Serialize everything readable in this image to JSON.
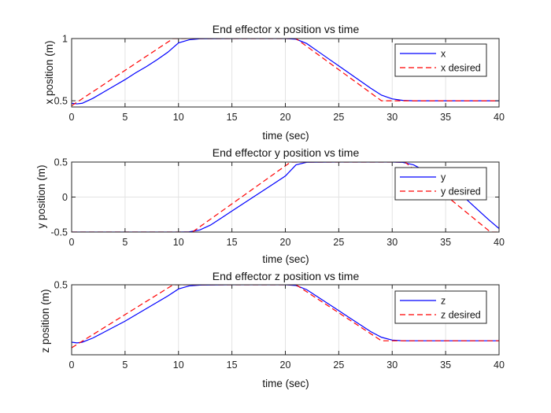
{
  "chart_data": [
    {
      "type": "line",
      "title": "End effector x position vs time",
      "xlabel": "time (sec)",
      "ylabel": "x position (m)",
      "xlim": [
        0,
        40
      ],
      "ylim": [
        0.45,
        1.0
      ],
      "xticks": [
        0,
        5,
        10,
        15,
        20,
        25,
        30,
        35,
        40
      ],
      "yticks": [
        0.5,
        1
      ],
      "ytick_labels": [
        "0.5",
        "1"
      ],
      "grid": true,
      "legend_position": "top-right",
      "series": [
        {
          "name": "x",
          "color": "#0000ff",
          "style": "solid",
          "x": [
            0,
            0.5,
            1,
            2,
            3,
            4,
            5,
            6,
            7,
            8,
            9,
            10,
            11,
            12,
            15,
            18,
            20,
            21,
            22,
            23,
            24,
            25,
            26,
            27,
            28,
            29,
            30,
            31,
            32,
            35,
            40
          ],
          "y": [
            0.48,
            0.475,
            0.48,
            0.52,
            0.57,
            0.62,
            0.67,
            0.725,
            0.775,
            0.83,
            0.89,
            0.965,
            0.99,
            0.998,
            1.0,
            1.0,
            1.0,
            0.995,
            0.96,
            0.9,
            0.84,
            0.78,
            0.72,
            0.66,
            0.6,
            0.545,
            0.515,
            0.503,
            0.5,
            0.5,
            0.5
          ]
        },
        {
          "name": "x desired",
          "color": "#ff0000",
          "style": "dashed",
          "x": [
            0,
            9.5,
            21,
            29,
            40
          ],
          "y": [
            0.46,
            1.0,
            1.0,
            0.5,
            0.5
          ]
        }
      ]
    },
    {
      "type": "line",
      "title": "End effector y position vs time",
      "xlabel": "time (sec)",
      "ylabel": "y position (m)",
      "xlim": [
        0,
        40
      ],
      "ylim": [
        -0.5,
        0.5
      ],
      "xticks": [
        0,
        5,
        10,
        15,
        20,
        25,
        30,
        35,
        40
      ],
      "yticks": [
        -0.5,
        0,
        0.5
      ],
      "ytick_labels": [
        "-0.5",
        "0",
        "0.5"
      ],
      "grid": true,
      "legend_position": "top-right",
      "series": [
        {
          "name": "y",
          "color": "#0000ff",
          "style": "solid",
          "x": [
            0,
            10,
            11,
            12,
            13,
            14,
            15,
            16,
            17,
            18,
            19,
            20,
            21,
            22,
            25,
            30,
            31,
            32,
            33,
            34,
            35,
            36,
            37,
            38,
            39,
            40
          ],
          "y": [
            -0.5,
            -0.5,
            -0.497,
            -0.47,
            -0.4,
            -0.3,
            -0.2,
            -0.1,
            0.0,
            0.1,
            0.2,
            0.3,
            0.46,
            0.497,
            0.5,
            0.5,
            0.495,
            0.46,
            0.38,
            0.28,
            0.18,
            0.08,
            -0.04,
            -0.18,
            -0.32,
            -0.45
          ]
        },
        {
          "name": "y desired",
          "color": "#ff0000",
          "style": "dashed",
          "x": [
            0,
            11.3,
            20.5,
            31.2,
            39.2,
            40
          ],
          "y": [
            -0.5,
            -0.5,
            0.5,
            0.5,
            -0.5,
            -0.5
          ]
        }
      ]
    },
    {
      "type": "line",
      "title": "End effector z position vs time",
      "xlabel": "time (sec)",
      "ylabel": "z position (m)",
      "xlim": [
        0,
        40
      ],
      "ylim": [
        0.0,
        0.5
      ],
      "xticks": [
        0,
        5,
        10,
        15,
        20,
        25,
        30,
        35,
        40
      ],
      "yticks": [
        0.5
      ],
      "ytick_labels": [
        "0.5"
      ],
      "grid": true,
      "legend_position": "top-right",
      "series": [
        {
          "name": "z",
          "color": "#0000ff",
          "style": "solid",
          "x": [
            0,
            0.5,
            1,
            2,
            3,
            4,
            5,
            6,
            7,
            8,
            9,
            10,
            11,
            12,
            15,
            18,
            20,
            21,
            22,
            23,
            24,
            25,
            26,
            27,
            28,
            29,
            30,
            31,
            32,
            35,
            40
          ],
          "y": [
            0.09,
            0.085,
            0.09,
            0.12,
            0.16,
            0.2,
            0.24,
            0.285,
            0.33,
            0.375,
            0.42,
            0.47,
            0.492,
            0.498,
            0.5,
            0.5,
            0.5,
            0.495,
            0.465,
            0.415,
            0.365,
            0.315,
            0.265,
            0.215,
            0.165,
            0.125,
            0.105,
            0.1,
            0.1,
            0.1,
            0.1
          ]
        },
        {
          "name": "z desired",
          "color": "#ff0000",
          "style": "dashed",
          "x": [
            0,
            9.5,
            21,
            29,
            40
          ],
          "y": [
            0.05,
            0.5,
            0.5,
            0.1,
            0.1
          ]
        }
      ]
    }
  ]
}
